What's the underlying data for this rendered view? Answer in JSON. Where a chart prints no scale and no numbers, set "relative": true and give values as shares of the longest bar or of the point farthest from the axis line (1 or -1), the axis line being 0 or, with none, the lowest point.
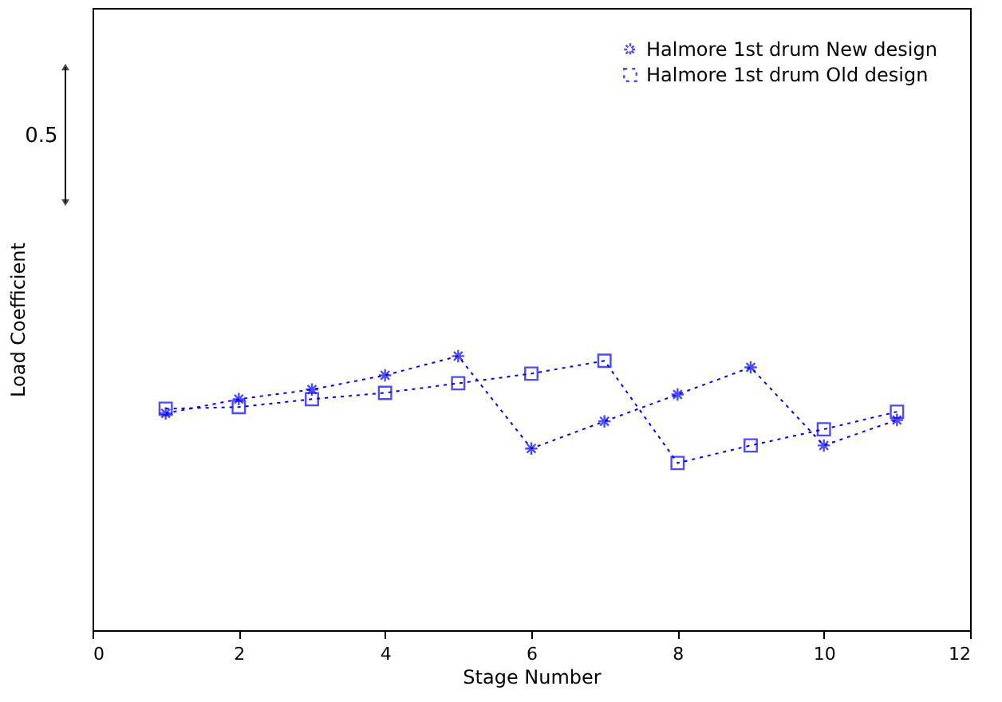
{
  "chart_data": {
    "type": "line",
    "relative": true,
    "xlabel": "Stage Number",
    "ylabel": "Load Coefficient",
    "x": [
      1,
      2,
      3,
      4,
      5,
      6,
      7,
      8,
      9,
      10,
      11
    ],
    "xlim": [
      0,
      12
    ],
    "xticks": [
      0,
      2,
      4,
      6,
      8,
      10,
      12
    ],
    "series": [
      {
        "name": "Halmore 1st drum New design",
        "color": "#0000ff",
        "marker": "cross",
        "values": [
          0.791,
          0.843,
          0.878,
          0.93,
          1,
          0.663,
          0.762,
          0.86,
          0.959,
          0.674,
          0.767
        ]
      },
      {
        "name": "Halmore 1st drum Old design",
        "color": "#0000ff",
        "marker": "square",
        "values": [
          0.808,
          0.814,
          0.843,
          0.866,
          0.901,
          0.936,
          0.983,
          0.61,
          0.674,
          0.733,
          0.797
        ]
      }
    ],
    "line_style": "dotted",
    "legend": "top right",
    "grid": false,
    "annotations": [
      "0.5"
    ]
  }
}
